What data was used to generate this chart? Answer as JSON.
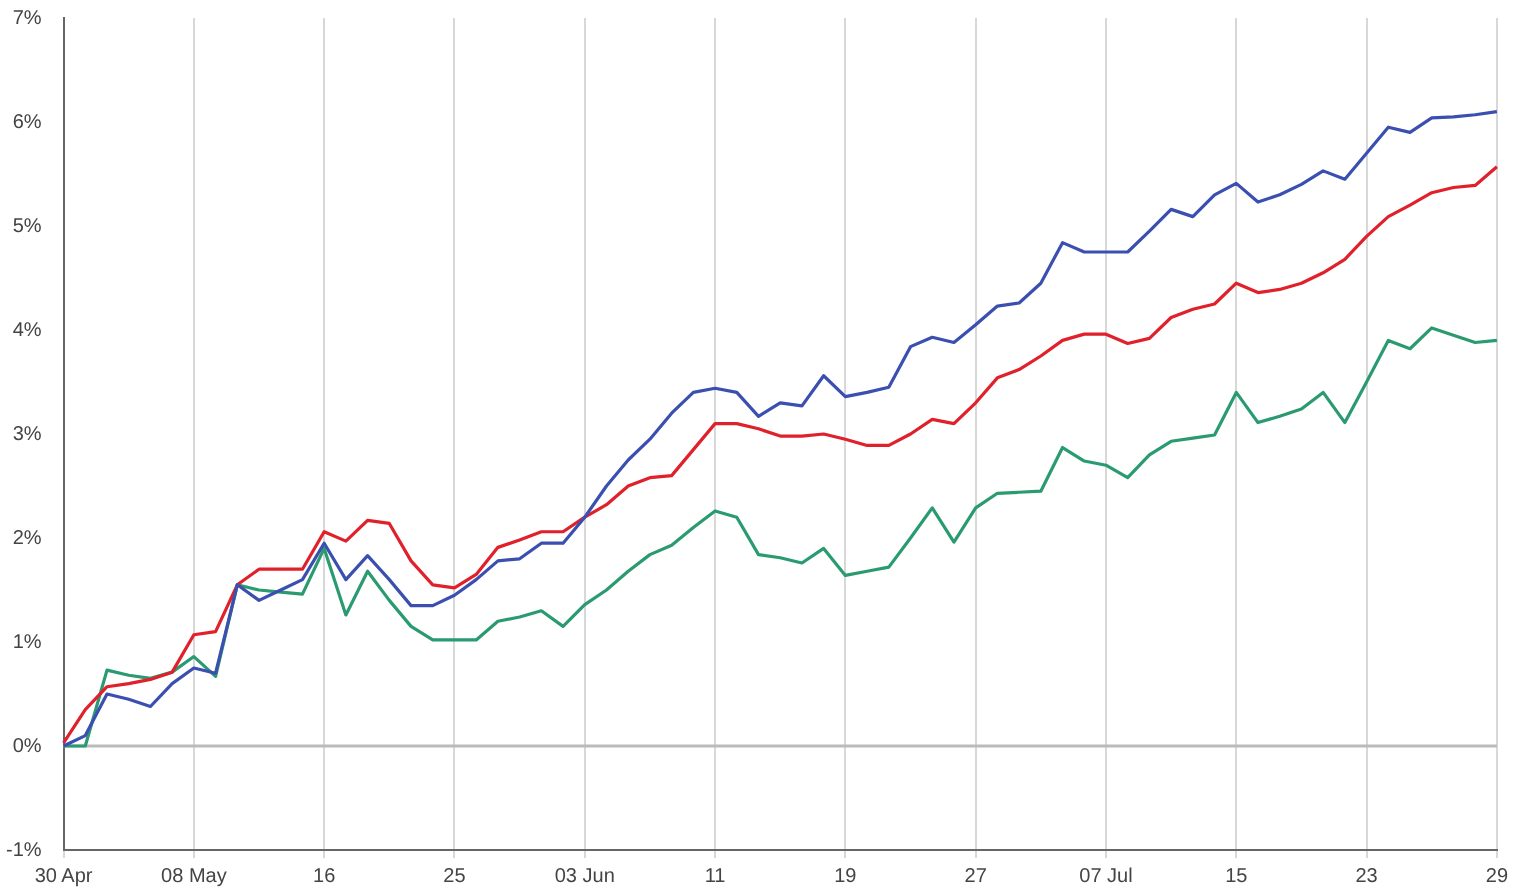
{
  "chart_data": {
    "type": "line",
    "categories": [
      "30 Apr",
      null,
      null,
      null,
      null,
      null,
      "08 May",
      null,
      null,
      null,
      null,
      null,
      "16",
      null,
      null,
      null,
      null,
      null,
      "25",
      null,
      null,
      null,
      null,
      null,
      "03 Jun",
      null,
      null,
      null,
      null,
      null,
      "11",
      null,
      null,
      null,
      null,
      null,
      "19",
      null,
      null,
      null,
      null,
      null,
      "27",
      null,
      null,
      null,
      null,
      null,
      "07 Jul",
      null,
      null,
      null,
      null,
      null,
      "15",
      null,
      null,
      null,
      null,
      null,
      "23",
      null,
      null,
      null,
      null,
      null,
      "29"
    ],
    "series": [
      {
        "color": "#3a4fb0",
        "values": [
          0,
          0.1,
          0.5,
          0.45,
          0.38,
          0.6,
          0.75,
          0.7,
          1.55,
          1.4,
          1.5,
          1.6,
          1.95,
          1.6,
          1.83,
          1.6,
          1.35,
          1.35,
          1.45,
          1.6,
          1.78,
          1.8,
          1.95,
          1.95,
          2.2,
          2.5,
          2.75,
          2.95,
          3.2,
          3.4,
          3.44,
          3.4,
          3.17,
          3.3,
          3.27,
          3.56,
          3.36,
          3.4,
          3.45,
          3.84,
          3.93,
          3.88,
          4.05,
          4.23,
          4.26,
          4.45,
          4.84,
          4.75,
          4.75,
          4.75,
          4.95,
          5.16,
          5.09,
          5.3,
          5.41,
          5.23,
          5.3,
          5.4,
          5.53,
          5.45,
          5.7,
          5.95,
          5.9,
          6.04,
          6.05,
          6.07,
          6.1
        ]
      },
      {
        "color": "#e0202a",
        "values": [
          0.03,
          0.35,
          0.57,
          0.6,
          0.64,
          0.71,
          1.07,
          1.1,
          1.55,
          1.7,
          1.7,
          1.7,
          2.06,
          1.97,
          2.17,
          2.14,
          1.78,
          1.55,
          1.52,
          1.65,
          1.91,
          1.98,
          2.06,
          2.06,
          2.2,
          2.32,
          2.5,
          2.58,
          2.6,
          2.85,
          3.1,
          3.1,
          3.05,
          2.98,
          2.98,
          3.0,
          2.95,
          2.89,
          2.89,
          3.0,
          3.14,
          3.1,
          3.3,
          3.54,
          3.62,
          3.75,
          3.9,
          3.96,
          3.96,
          3.87,
          3.92,
          4.12,
          4.2,
          4.25,
          4.45,
          4.36,
          4.39,
          4.45,
          4.55,
          4.68,
          4.9,
          5.09,
          5.2,
          5.32,
          5.37,
          5.39,
          5.57
        ]
      },
      {
        "color": "#2a9a70",
        "values": [
          0,
          0,
          0.73,
          0.68,
          0.65,
          0.71,
          0.86,
          0.67,
          1.55,
          1.5,
          1.48,
          1.46,
          1.9,
          1.26,
          1.68,
          1.4,
          1.15,
          1.02,
          1.02,
          1.02,
          1.2,
          1.24,
          1.3,
          1.15,
          1.36,
          1.5,
          1.68,
          1.84,
          1.93,
          2.1,
          2.26,
          2.2,
          1.84,
          1.81,
          1.76,
          1.9,
          1.64,
          1.68,
          1.72,
          2.0,
          2.29,
          1.96,
          2.29,
          2.43,
          2.44,
          2.45,
          2.87,
          2.74,
          2.7,
          2.58,
          2.8,
          2.93,
          2.96,
          2.99,
          3.4,
          3.11,
          3.17,
          3.24,
          3.4,
          3.11,
          3.5,
          3.9,
          3.82,
          4.02,
          3.95,
          3.88,
          3.9
        ]
      }
    ],
    "ylim": [
      -1,
      7
    ],
    "yticks": [
      {
        "value": -1,
        "label": "-1%"
      },
      {
        "value": 0,
        "label": "0%"
      },
      {
        "value": 1,
        "label": "1%"
      },
      {
        "value": 2,
        "label": "2%"
      },
      {
        "value": 3,
        "label": "3%"
      },
      {
        "value": 4,
        "label": "4%"
      },
      {
        "value": 5,
        "label": "5%"
      },
      {
        "value": 6,
        "label": "6%"
      },
      {
        "value": 7,
        "label": "7%"
      }
    ],
    "grid": "x",
    "legend": false,
    "marker": "none",
    "line_style": "solid",
    "ref_lines": [
      {
        "axis": "y",
        "value": 0,
        "color": "#bbbbbb"
      }
    ]
  }
}
